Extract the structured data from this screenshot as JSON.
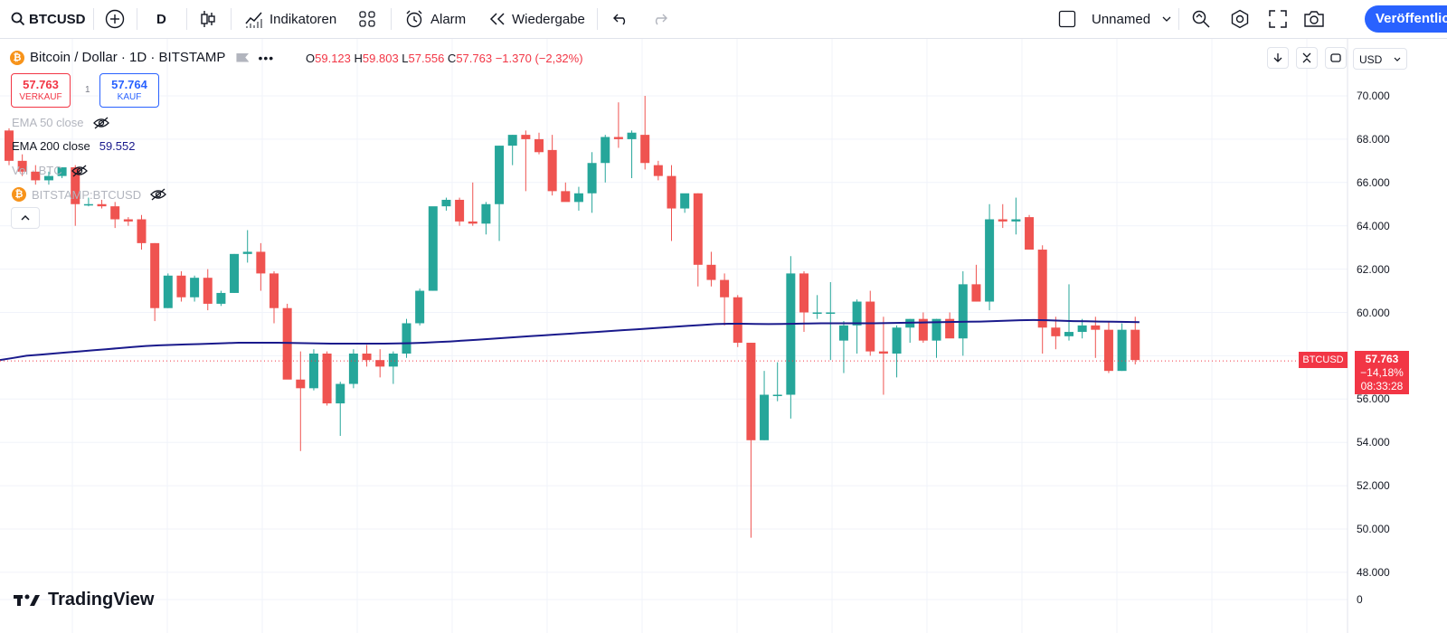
{
  "toolbar": {
    "symbol": "BTCUSD",
    "interval": "D",
    "indicators_label": "Indikatoren",
    "alert_label": "Alarm",
    "replay_label": "Wiedergabe",
    "layout_name": "Unnamed",
    "publish_label": "Veröffentlichen"
  },
  "legend": {
    "title": "Bitcoin / Dollar · 1D · BITSTAMP",
    "coin_glyph": "₿",
    "ohlc": {
      "o_label": "O",
      "o": "59.123",
      "h_label": "H",
      "h": "59.803",
      "l_label": "L",
      "l": "57.556",
      "c_label": "C",
      "c": "57.763",
      "change": "−1.370 (−2,32%)"
    },
    "sell": {
      "price": "57.763",
      "label": "VERKAUF"
    },
    "buy": {
      "price": "57.764",
      "label": "KAUF"
    },
    "spread": "1",
    "indicators": [
      {
        "name": "EMA 50 close",
        "value": ""
      },
      {
        "name": "EMA 200 close",
        "value": "59.552"
      },
      {
        "name": "Vol · BTC",
        "value": ""
      },
      {
        "name": "BITSTAMP:BTCUSD",
        "value": ""
      }
    ]
  },
  "price_axis": {
    "currency": "USD",
    "ticks": [
      "70.000",
      "68.000",
      "66.000",
      "64.000",
      "62.000",
      "60.000",
      "58.000",
      "56.000",
      "54.000",
      "52.000",
      "50.000",
      "48.000",
      "0"
    ],
    "last_price": "57.763",
    "last_change": "−14,18%",
    "countdown": "08:33:28",
    "symbol_label": "BTCUSD"
  },
  "logo_text": "TradingView",
  "colors": {
    "up": "#26a69a",
    "down": "#ef5350",
    "ema200": "#1a1a8c",
    "accent": "#2962ff"
  },
  "chart_data": {
    "type": "candlestick",
    "y_unit": "USD",
    "ylim": [
      47000,
      71000
    ],
    "candles": [
      [
        68400,
        68500,
        66800,
        67000
      ],
      [
        67000,
        67300,
        66300,
        66500
      ],
      [
        66500,
        66800,
        65900,
        66100
      ],
      [
        66100,
        66500,
        65900,
        66300
      ],
      [
        66300,
        66700,
        66200,
        66700
      ],
      [
        66700,
        66800,
        64000,
        65000
      ],
      [
        65000,
        65300,
        64900,
        65000
      ],
      [
        65000,
        65200,
        64800,
        64900
      ],
      [
        64900,
        65100,
        63900,
        64300
      ],
      [
        64300,
        64400,
        64000,
        64200
      ],
      [
        64300,
        64500,
        62900,
        63200
      ],
      [
        63200,
        63200,
        59600,
        60200
      ],
      [
        60200,
        61800,
        60200,
        61700
      ],
      [
        61700,
        61900,
        60500,
        60700
      ],
      [
        60700,
        61700,
        60500,
        61600
      ],
      [
        61600,
        62000,
        60100,
        60400
      ],
      [
        60400,
        61000,
        60300,
        60900
      ],
      [
        60900,
        62700,
        60900,
        62700
      ],
      [
        62700,
        63800,
        62300,
        62800
      ],
      [
        62800,
        63200,
        61000,
        61800
      ],
      [
        61800,
        61900,
        59500,
        60200
      ],
      [
        60200,
        60400,
        57100,
        56900
      ],
      [
        56900,
        58200,
        53600,
        56500
      ],
      [
        56500,
        58300,
        56400,
        58100
      ],
      [
        58100,
        58200,
        55700,
        55800
      ],
      [
        55800,
        56800,
        54300,
        56700
      ],
      [
        56700,
        58300,
        56500,
        58100
      ],
      [
        58100,
        58500,
        57500,
        57800
      ],
      [
        57800,
        58300,
        57000,
        57500
      ],
      [
        57500,
        58200,
        56700,
        58100
      ],
      [
        58100,
        59700,
        57900,
        59500
      ],
      [
        59500,
        61100,
        59400,
        61000
      ],
      [
        61000,
        64700,
        61000,
        64900
      ],
      [
        64900,
        65300,
        64700,
        65200
      ],
      [
        65200,
        65300,
        64000,
        64200
      ],
      [
        64200,
        66000,
        64000,
        64100
      ],
      [
        64100,
        65100,
        63600,
        65000
      ],
      [
        65000,
        67700,
        63300,
        67700
      ],
      [
        67700,
        68200,
        66800,
        68200
      ],
      [
        68200,
        68400,
        65600,
        68000
      ],
      [
        68000,
        68300,
        67300,
        67400
      ],
      [
        67500,
        68200,
        65400,
        65600
      ],
      [
        65600,
        66000,
        65300,
        65100
      ],
      [
        65100,
        65800,
        64700,
        65500
      ],
      [
        65500,
        67400,
        64600,
        66900
      ],
      [
        66900,
        68200,
        66000,
        68100
      ],
      [
        68100,
        69700,
        67600,
        68000
      ],
      [
        68000,
        68400,
        66200,
        68300
      ],
      [
        68200,
        70000,
        66600,
        66900
      ],
      [
        66800,
        67000,
        66100,
        66300
      ],
      [
        66300,
        66800,
        63300,
        64800
      ],
      [
        64800,
        65300,
        64600,
        65500
      ],
      [
        65500,
        65500,
        61200,
        62200
      ],
      [
        62200,
        62800,
        61200,
        61500
      ],
      [
        61500,
        61800,
        59400,
        60700
      ],
      [
        60700,
        60800,
        58400,
        58600
      ],
      [
        58600,
        58600,
        49600,
        54100
      ],
      [
        54100,
        57300,
        54100,
        56200
      ],
      [
        56200,
        57700,
        55900,
        56200
      ],
      [
        56200,
        62600,
        55100,
        61800
      ],
      [
        61800,
        61900,
        59100,
        60000
      ],
      [
        60000,
        60800,
        59700,
        60000
      ],
      [
        60000,
        61400,
        57800,
        60000
      ],
      [
        58700,
        59600,
        57200,
        59400
      ],
      [
        59400,
        60600,
        58100,
        60500
      ],
      [
        60500,
        61000,
        58000,
        58200
      ],
      [
        58200,
        59800,
        56200,
        58100
      ],
      [
        58100,
        59400,
        57000,
        59300
      ],
      [
        59300,
        59700,
        58600,
        59700
      ],
      [
        59700,
        60000,
        58600,
        58700
      ],
      [
        58700,
        59700,
        57900,
        59700
      ],
      [
        59700,
        60000,
        58900,
        58800
      ],
      [
        58800,
        61900,
        58000,
        61300
      ],
      [
        61300,
        62200,
        60500,
        60500
      ],
      [
        60500,
        65000,
        60100,
        64300
      ],
      [
        64300,
        65000,
        63900,
        64200
      ],
      [
        64200,
        65300,
        63600,
        64300
      ],
      [
        64400,
        64500,
        62900,
        62900
      ],
      [
        62900,
        63100,
        58100,
        59300
      ],
      [
        59300,
        59800,
        58300,
        58900
      ],
      [
        58900,
        61300,
        58700,
        59100
      ],
      [
        59100,
        59700,
        58800,
        59400
      ],
      [
        59400,
        59800,
        57900,
        59200
      ],
      [
        59200,
        59600,
        57200,
        57300
      ],
      [
        57300,
        59500,
        57300,
        59200
      ],
      [
        59200,
        59800,
        57600,
        57800
      ]
    ],
    "ema200": [
      57800,
      57900,
      58000,
      58050,
      58100,
      58150,
      58200,
      58250,
      58300,
      58350,
      58400,
      58450,
      58480,
      58500,
      58520,
      58540,
      58560,
      58580,
      58600,
      58600,
      58600,
      58600,
      58590,
      58580,
      58570,
      58560,
      58560,
      58560,
      58560,
      58560,
      58570,
      58580,
      58600,
      58630,
      58660,
      58700,
      58740,
      58780,
      58820,
      58860,
      58900,
      58940,
      58980,
      59020,
      59060,
      59100,
      59140,
      59180,
      59220,
      59260,
      59300,
      59340,
      59380,
      59420,
      59460,
      59480,
      59480,
      59470,
      59460,
      59470,
      59480,
      59490,
      59500,
      59500,
      59500,
      59500,
      59500,
      59510,
      59520,
      59530,
      59540,
      59550,
      59560,
      59570,
      59580,
      59600,
      59620,
      59640,
      59650,
      59640,
      59620,
      59600,
      59590,
      59580,
      59570,
      59560,
      59552
    ]
  }
}
